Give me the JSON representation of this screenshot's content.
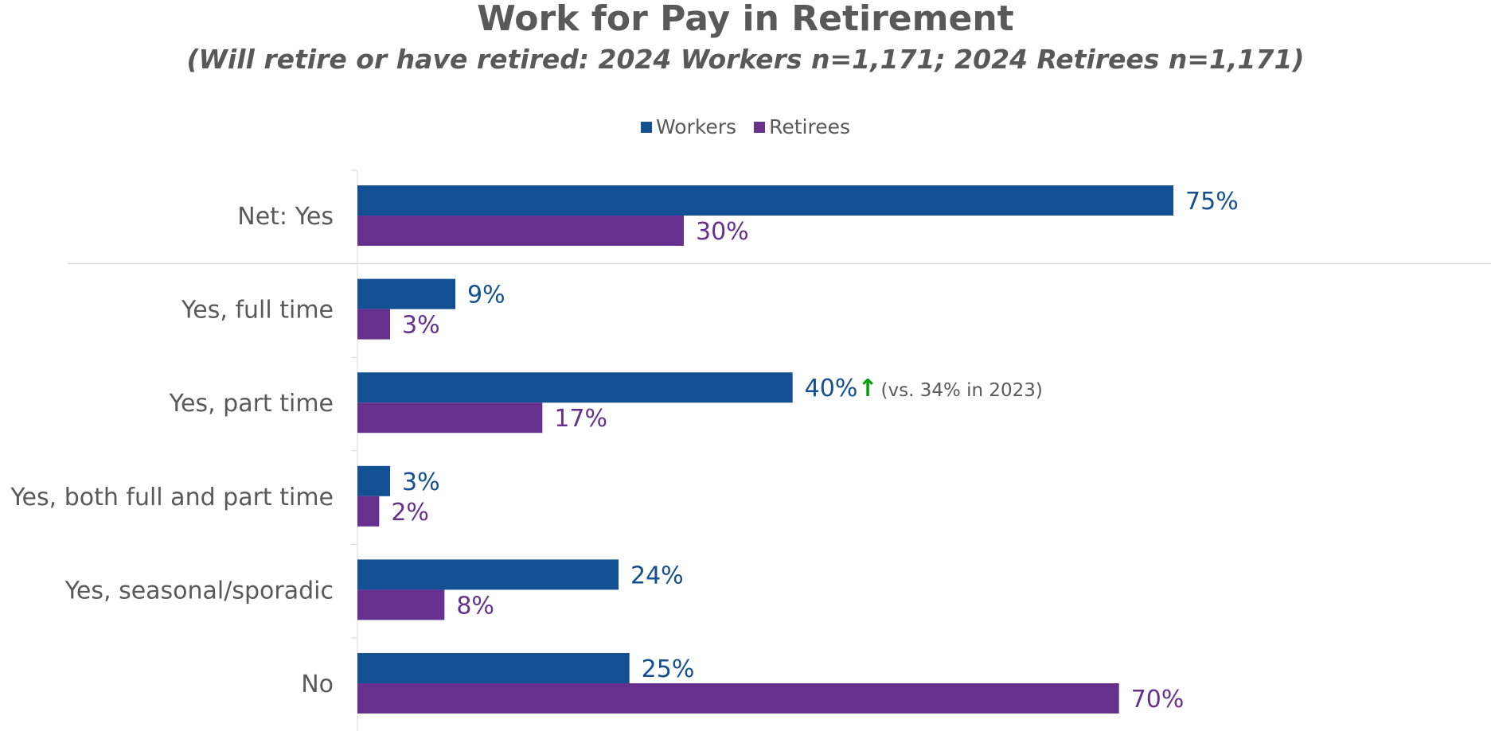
{
  "chart_data": {
    "type": "bar",
    "orientation": "horizontal",
    "title": "Work for Pay in Retirement",
    "subtitle": "(Will retire or have retired: 2024 Workers n=1,171; 2024 Retirees n=1,171)",
    "categories": [
      "Net: Yes",
      "Yes, full time",
      "Yes, part time",
      "Yes, both full and part time",
      "Yes, seasonal/sporadic",
      "No"
    ],
    "series": [
      {
        "name": "Workers",
        "color": "#124F93",
        "values": [
          75,
          9,
          40,
          3,
          24,
          25
        ],
        "labels": [
          "75%",
          "9%",
          "40%",
          "3%",
          "24%",
          "25%"
        ]
      },
      {
        "name": "Retirees",
        "color": "#66308F",
        "values": [
          30,
          3,
          17,
          2,
          8,
          70
        ],
        "labels": [
          "30%",
          "3%",
          "17%",
          "2%",
          "8%",
          "70%"
        ]
      }
    ],
    "annotations": [
      {
        "category": "Yes, part time",
        "series": "Workers",
        "arrow": "↑",
        "arrow_color": "#00A000",
        "text": "(vs. 34% in 2023)"
      }
    ],
    "xlim": [
      0,
      100
    ],
    "legend_position": "top-center",
    "grid": false,
    "separator_after_category": "Net: Yes"
  }
}
